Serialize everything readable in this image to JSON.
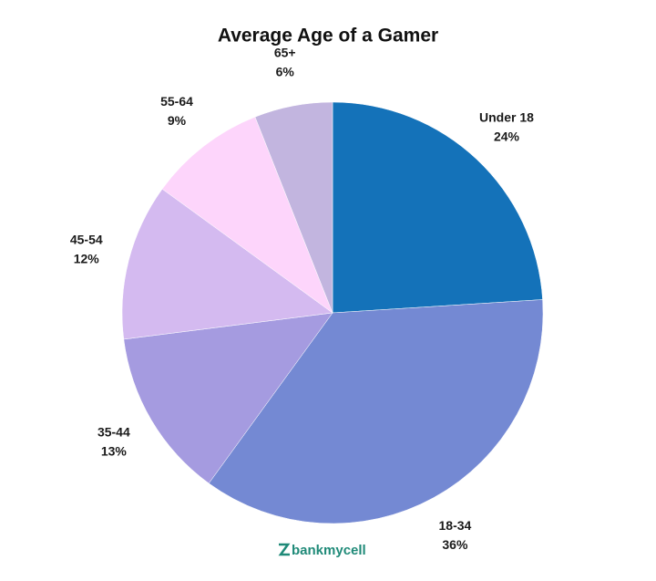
{
  "chart_data": {
    "type": "pie",
    "title": "Average Age of a Gamer",
    "categories": [
      "Under 18",
      "18-34",
      "35-44",
      "45-54",
      "55-64",
      "65+"
    ],
    "values": [
      24,
      36,
      13,
      12,
      9,
      6
    ],
    "value_labels": [
      "24%",
      "36%",
      "13%",
      "12%",
      "9%",
      "6%"
    ],
    "colors": [
      "#1472b9",
      "#7489d3",
      "#a59be0",
      "#d4baf0",
      "#fdd5fb",
      "#c2b5df"
    ],
    "watermark": "bankmycell"
  }
}
